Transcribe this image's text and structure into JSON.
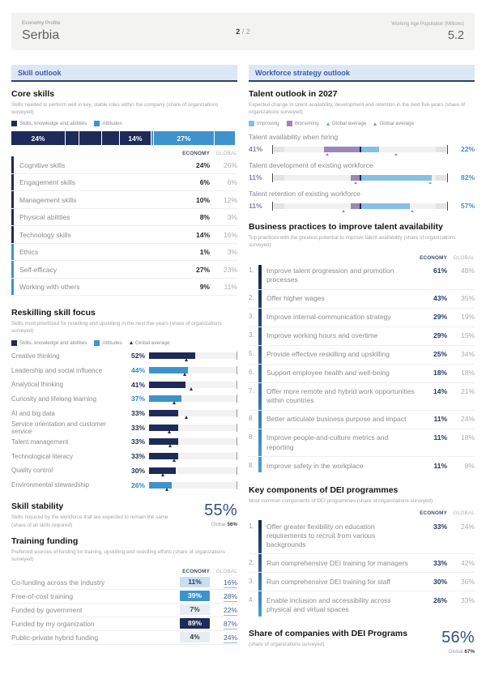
{
  "colors": {
    "navy": "#1e2b58",
    "blue": "#3e93cc",
    "light_blue": "#85bfe4",
    "purple": "#9c86ba",
    "marker_dark": "#2b2b2b",
    "marker_blue": "#7aa7c7",
    "section_bg": "#dce8f5",
    "section_text": "#3a5dae",
    "section_border": "#2e3f6e",
    "econ_value": "#1f3864",
    "big_value": "#33507e",
    "global_link": "#44608a",
    "global_underline": "#8bbcdc",
    "cell_pale": "#e7edf4",
    "cell_light": "#c9dff0"
  },
  "header": {
    "kicker": "Economy Profile",
    "title": "Serbia",
    "page_current": "2",
    "page_separator": " / ",
    "page_total": "2",
    "metric_label": "Working Age Population (Millions)",
    "metric_value": "5.2"
  },
  "left": {
    "section_title": "Skill outlook",
    "core_skills": {
      "title": "Core skills",
      "description": "Skills needed to perform well in key, stable roles within the company (share of organizations surveyed)",
      "col_economy": "ECONOMY",
      "col_global": "GLOBAL",
      "legend": [
        {
          "label": "Skills, knowledge and abilities",
          "color": "#1e2b58",
          "marker": "square"
        },
        {
          "label": "Attitudes",
          "color": "#3e93cc",
          "marker": "square"
        }
      ],
      "stacked_bar": [
        {
          "label": "24%",
          "value": 24,
          "type": "skills"
        },
        {
          "label": "",
          "value": 6,
          "type": "skills"
        },
        {
          "label": "",
          "value": 10,
          "type": "skills"
        },
        {
          "label": "",
          "value": 8,
          "type": "skills"
        },
        {
          "label": "14%",
          "value": 14,
          "type": "skills"
        },
        {
          "label": "",
          "value": 1,
          "type": "attitudes"
        },
        {
          "label": "27%",
          "value": 27,
          "type": "attitudes"
        },
        {
          "label": "",
          "value": 9,
          "type": "attitudes"
        }
      ],
      "rows": [
        {
          "label": "Cognitive skills",
          "economy": "24%",
          "global": "26%",
          "type": "skills"
        },
        {
          "label": "Engagement skills",
          "economy": "6%",
          "global": "6%",
          "type": "skills"
        },
        {
          "label": "Management skills",
          "economy": "10%",
          "global": "12%",
          "type": "skills"
        },
        {
          "label": "Physical abilities",
          "economy": "8%",
          "global": "3%",
          "type": "skills"
        },
        {
          "label": "Technology skills",
          "economy": "14%",
          "global": "16%",
          "type": "skills"
        },
        {
          "label": "Ethics",
          "economy": "1%",
          "global": "3%",
          "type": "attitudes"
        },
        {
          "label": "Self-efficacy",
          "economy": "27%",
          "global": "23%",
          "type": "attitudes"
        },
        {
          "label": "Working with others",
          "economy": "9%",
          "global": "11%",
          "type": "attitudes"
        }
      ]
    },
    "reskilling": {
      "title": "Reskilling skill focus",
      "description": "Skills most prioritized for reskilling and upskilling in the next five years (share of organizations surveyed)",
      "legend": [
        {
          "label": "Skills, knowledge and abilities",
          "color": "#1e2b58",
          "marker": "square"
        },
        {
          "label": "Attitudes",
          "color": "#3e93cc",
          "marker": "square"
        },
        {
          "label": "Global average",
          "color": "#2b2b2b",
          "marker": "triangle"
        }
      ],
      "rows": [
        {
          "label": "Creative thinking",
          "display": "52%",
          "value": 52,
          "type": "skills",
          "global_avg": 42
        },
        {
          "label": "Leadership and social influence",
          "display": "44%",
          "value": 44,
          "type": "attitudes",
          "global_avg": 40
        },
        {
          "label": "Analytical thinking",
          "display": "41%",
          "value": 41,
          "type": "skills",
          "global_avg": 48
        },
        {
          "label": "Curiosity and lifelong learning",
          "display": "37%",
          "value": 37,
          "type": "attitudes",
          "global_avg": 28
        },
        {
          "label": "AI and big data",
          "display": "33%",
          "value": 33,
          "type": "skills",
          "global_avg": 42
        },
        {
          "label": "Service orientation and customer service",
          "display": "33%",
          "value": 33,
          "type": "skills",
          "global_avg": 23
        },
        {
          "label": "Talent management",
          "display": "33%",
          "value": 33,
          "type": "skills",
          "global_avg": 24
        },
        {
          "label": "Technological literacy",
          "display": "33%",
          "value": 33,
          "type": "skills",
          "global_avg": 28
        },
        {
          "label": "Quality control",
          "display": "30%",
          "value": 30,
          "type": "skills",
          "global_avg": 16
        },
        {
          "label": "Environmental stewardship",
          "display": "26%",
          "value": 26,
          "type": "attitudes",
          "global_avg": 20
        }
      ]
    },
    "skill_stability": {
      "title": "Skill stability",
      "description": "Skills required by the workforce that are expected to remain the same (share of all skills required)",
      "value": "55%",
      "global_label": "Global ",
      "global_value": "56%"
    },
    "training_funding": {
      "title": "Training funding",
      "description": "Preferred sources of funding for training, upskilling and reskilling efforts (share of organizations surveyed)",
      "col_economy": "ECONOMY",
      "col_global": "GLOBAL",
      "rows": [
        {
          "label": "Co-funding across the industry",
          "economy": "11%",
          "global": "16%",
          "cell": "light"
        },
        {
          "label": "Free-of-cost training",
          "economy": "39%",
          "global": "28%",
          "cell": "medium"
        },
        {
          "label": "Funded by government",
          "economy": "7%",
          "global": "22%",
          "cell": "pale"
        },
        {
          "label": "Funded by my organization",
          "economy": "89%",
          "global": "87%",
          "cell": "dark"
        },
        {
          "label": "Public-private hybrid funding",
          "economy": "4%",
          "global": "24%",
          "cell": "pale"
        }
      ]
    }
  },
  "right": {
    "section_title": "Workforce strategy outlook",
    "talent_outlook": {
      "title": "Talent outlook in 2027",
      "description": "Expected change in talent availability, development and retention in the next five years (share of organizations surveyed)",
      "legend": [
        {
          "label": "Improving",
          "color": "#85bfe4",
          "marker": "square"
        },
        {
          "label": "Worsening",
          "color": "#9c86ba",
          "marker": "square"
        },
        {
          "label": "Global average",
          "color": "#7aa7c7",
          "marker": "triangle"
        },
        {
          "label": "Global average",
          "color": "#9c86ba",
          "marker": "triangle"
        }
      ],
      "rows": [
        {
          "label": "Talent availability when hiring",
          "worsening_display": "41%",
          "improving_display": "22%",
          "worsening": 41,
          "improving": 22,
          "worsening_global": 37,
          "improving_global": 41
        },
        {
          "label": "Talent development of existing workforce",
          "worsening_display": "11%",
          "improving_display": "82%",
          "worsening": 11,
          "improving": 82,
          "worsening_global": 5,
          "improving_global": 80
        },
        {
          "label": "Talent retention of existing workforce",
          "worsening_display": "11%",
          "improving_display": "57%",
          "worsening": 11,
          "improving": 57,
          "worsening_global": 19,
          "improving_global": 59
        }
      ]
    },
    "business_practices": {
      "title": "Business practices to improve talent availability",
      "description": "Top practices with the greatest potential to improve talent availability (share of organizations surveyed)",
      "col_economy": "ECONOMY",
      "col_global": "GLOBAL",
      "rows": [
        {
          "rank": "1.",
          "label": "Improve talent progression and promotion processes",
          "economy": "61%",
          "global": "48%"
        },
        {
          "rank": "2.",
          "label": "Offer higher wages",
          "economy": "43%",
          "global": "35%"
        },
        {
          "rank": "3.",
          "label": "Improve internal-communication strategy",
          "economy": "29%",
          "global": "19%"
        },
        {
          "rank": "3.",
          "label": "Improve working hours and overtime",
          "economy": "29%",
          "global": "15%"
        },
        {
          "rank": "5.",
          "label": "Provide effective reskilling and upskilling",
          "economy": "25%",
          "global": "34%"
        },
        {
          "rank": "6.",
          "label": "Support employee health and well-being",
          "economy": "18%",
          "global": "18%"
        },
        {
          "rank": "7.",
          "label": "Offer more remote and hybrid work opportunities within countries",
          "economy": "14%",
          "global": "21%"
        },
        {
          "rank": "8.",
          "label": "Better articulate business purpose and impact",
          "economy": "11%",
          "global": "24%"
        },
        {
          "rank": "8.",
          "label": "Improve people-and-culture metrics and reporting",
          "economy": "11%",
          "global": "18%"
        },
        {
          "rank": "8.",
          "label": "Improve safety in the workplace",
          "economy": "11%",
          "global": "8%"
        }
      ]
    },
    "dei_components": {
      "title": "Key components of DEI programmes",
      "description": "Most common components of DEI programmes (share of organizations surveyed)",
      "col_economy": "ECONOMY",
      "col_global": "GLOBAL",
      "rows": [
        {
          "rank": "1.",
          "label": "Offer greater flexibility on education requirements to recruit from various backgrounds",
          "economy": "33%",
          "global": "24%"
        },
        {
          "rank": "2.",
          "label": "Run comprehensive DEI training for managers",
          "economy": "33%",
          "global": "42%"
        },
        {
          "rank": "3.",
          "label": "Run comprehensive DEI training for staff",
          "economy": "30%",
          "global": "36%"
        },
        {
          "rank": "4.",
          "label": "Enable inclusion and accessibility across physical and virtual spaces",
          "economy": "26%",
          "global": "33%"
        }
      ]
    },
    "dei_share": {
      "title": "Share of companies with DEI Programs",
      "description": "(share of organizations surveyed)",
      "value": "56%",
      "global_label": "Global ",
      "global_value": "67%"
    }
  },
  "chart_data": [
    {
      "type": "bar",
      "subtype": "stacked-horizontal",
      "title": "Core skills",
      "categories": [
        "Cognitive skills",
        "Engagement skills",
        "Management skills",
        "Physical abilities",
        "Technology skills",
        "Ethics",
        "Self-efficacy",
        "Working with others"
      ],
      "series": [
        {
          "name": "Economy",
          "values": [
            24,
            6,
            10,
            8,
            14,
            1,
            27,
            9
          ]
        },
        {
          "name": "Global",
          "values": [
            26,
            6,
            12,
            3,
            16,
            3,
            23,
            11
          ]
        }
      ],
      "groups": {
        "Skills, knowledge and abilities": [
          "Cognitive skills",
          "Engagement skills",
          "Management skills",
          "Physical abilities",
          "Technology skills"
        ],
        "Attitudes": [
          "Ethics",
          "Self-efficacy",
          "Working with others"
        ]
      },
      "unit": "%"
    },
    {
      "type": "bar",
      "subtype": "horizontal",
      "title": "Reskilling skill focus",
      "categories": [
        "Creative thinking",
        "Leadership and social influence",
        "Analytical thinking",
        "Curiosity and lifelong learning",
        "AI and big data",
        "Service orientation and customer service",
        "Talent management",
        "Technological literacy",
        "Quality control",
        "Environmental stewardship"
      ],
      "series": [
        {
          "name": "Economy",
          "values": [
            52,
            44,
            41,
            37,
            33,
            33,
            33,
            33,
            30,
            26
          ]
        },
        {
          "name": "Global average (marker, estimated)",
          "values": [
            42,
            40,
            48,
            28,
            42,
            23,
            24,
            28,
            16,
            20
          ]
        }
      ],
      "xlim": [
        0,
        100
      ],
      "unit": "%"
    },
    {
      "type": "kpi",
      "title": "Skill stability",
      "value": 55,
      "global_value": 56,
      "unit": "%"
    },
    {
      "type": "table",
      "title": "Training funding",
      "categories": [
        "Co-funding across the industry",
        "Free-of-cost training",
        "Funded by government",
        "Funded by my organization",
        "Public-private hybrid funding"
      ],
      "series": [
        {
          "name": "Economy",
          "values": [
            11,
            39,
            7,
            89,
            4
          ]
        },
        {
          "name": "Global",
          "values": [
            16,
            28,
            22,
            87,
            24
          ]
        }
      ],
      "unit": "%"
    },
    {
      "type": "bar",
      "subtype": "diverging-horizontal",
      "title": "Talent outlook in 2027",
      "categories": [
        "Talent availability when hiring",
        "Talent development of existing workforce",
        "Talent retention of existing workforce"
      ],
      "series": [
        {
          "name": "Worsening",
          "values": [
            41,
            11,
            11
          ]
        },
        {
          "name": "Improving",
          "values": [
            22,
            82,
            57
          ]
        },
        {
          "name": "Worsening global average (marker, estimated)",
          "values": [
            37,
            5,
            19
          ]
        },
        {
          "name": "Improving global average (marker, estimated)",
          "values": [
            41,
            80,
            59
          ]
        }
      ],
      "unit": "%"
    },
    {
      "type": "table",
      "title": "Business practices to improve talent availability",
      "ranks": [
        "1.",
        "2.",
        "3.",
        "3.",
        "5.",
        "6.",
        "7.",
        "8.",
        "8.",
        "8."
      ],
      "categories": [
        "Improve talent progression and promotion processes",
        "Offer higher wages",
        "Improve internal-communication strategy",
        "Improve working hours and overtime",
        "Provide effective reskilling and upskilling",
        "Support employee health and well-being",
        "Offer more remote and hybrid work opportunities within countries",
        "Better articulate business purpose and impact",
        "Improve people-and-culture metrics and reporting",
        "Improve safety in the workplace"
      ],
      "series": [
        {
          "name": "Economy",
          "values": [
            61,
            43,
            29,
            29,
            25,
            18,
            14,
            11,
            11,
            11
          ]
        },
        {
          "name": "Global",
          "values": [
            48,
            35,
            19,
            15,
            34,
            18,
            21,
            24,
            18,
            8
          ]
        }
      ],
      "unit": "%"
    },
    {
      "type": "table",
      "title": "Key components of DEI programmes",
      "ranks": [
        "1.",
        "2.",
        "3.",
        "4."
      ],
      "categories": [
        "Offer greater flexibility on education requirements to recruit from various backgrounds",
        "Run comprehensive DEI training for managers",
        "Run comprehensive DEI training for staff",
        "Enable inclusion and accessibility across physical and virtual spaces"
      ],
      "series": [
        {
          "name": "Economy",
          "values": [
            33,
            33,
            30,
            26
          ]
        },
        {
          "name": "Global",
          "values": [
            24,
            42,
            36,
            33
          ]
        }
      ],
      "unit": "%"
    },
    {
      "type": "kpi",
      "title": "Share of companies with DEI Programs",
      "value": 56,
      "global_value": 67,
      "unit": "%"
    }
  ]
}
